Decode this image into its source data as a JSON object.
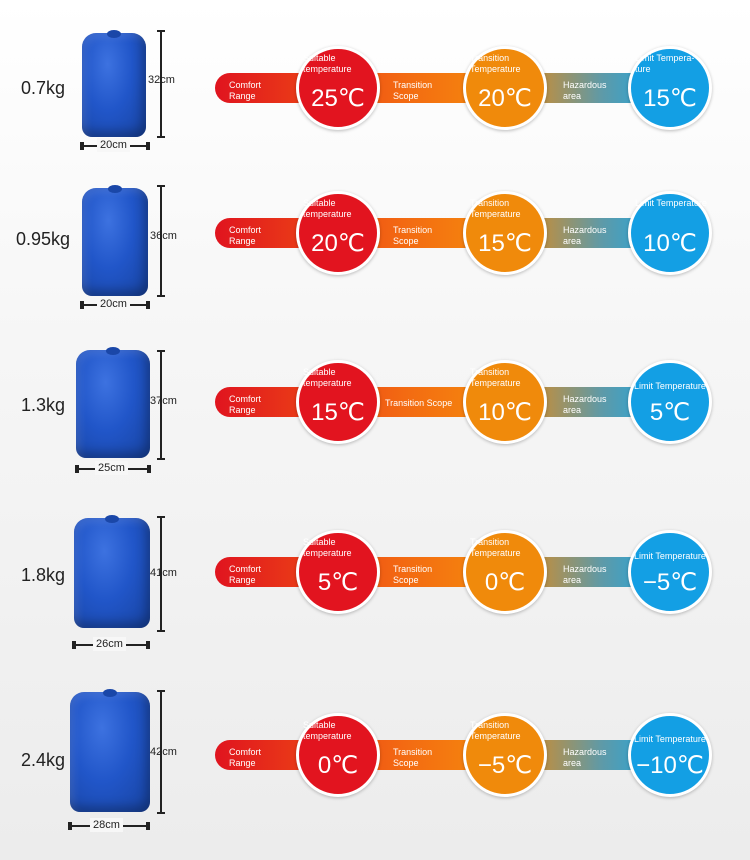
{
  "rows": [
    {
      "weight": "0.7kg",
      "height": "32cm",
      "width": "20cm",
      "comfort": "Comfort Range",
      "suitable_title": "Suitable temperature",
      "suitable_temp": "25℃",
      "transition_label": "Transition Scope",
      "transition_title": "Transition Temperature",
      "transition_temp": "20℃",
      "hazard_label": "Hazardous area",
      "limit_title": "Limit Tempera- ture",
      "limit_temp": "15℃"
    },
    {
      "weight": "0.95kg",
      "height": "36cm",
      "width": "20cm",
      "comfort": "Comfort Range",
      "suitable_title": "Suitable temperature",
      "suitable_temp": "20℃",
      "transition_label": "Transition Scope",
      "transition_title": "Transition Temperature",
      "transition_temp": "15℃",
      "hazard_label": "Hazardous area",
      "limit_title": "Limit Temperature",
      "limit_temp": "10℃"
    },
    {
      "weight": "1.3kg",
      "height": "37cm",
      "width": "25cm",
      "comfort": "Comfort Range",
      "suitable_title": "Suitable temperature",
      "suitable_temp": "15℃",
      "transition_label": "Transition Scope",
      "transition_title": "Transition Temperature",
      "transition_temp": "10℃",
      "hazard_label": "Hazardous area",
      "limit_title": "Limit Temperature",
      "limit_temp": "5℃"
    },
    {
      "weight": "1.8kg",
      "height": "41cm",
      "width": "26cm",
      "comfort": "Comfort Range",
      "suitable_title": "Suitable temperature",
      "suitable_temp": "5℃",
      "transition_label": "Transition Scope",
      "transition_title": "Transition Temperature",
      "transition_temp": "0℃",
      "hazard_label": "Hazardous area",
      "limit_title": "Limit Temperature",
      "limit_temp": "−5℃"
    },
    {
      "weight": "2.4kg",
      "height": "42cm",
      "width": "28cm",
      "comfort": "Comfort Range",
      "suitable_title": "Suitable temperature",
      "suitable_temp": "0℃",
      "transition_label": "Transition Scope",
      "transition_title": "Transition Temperature",
      "transition_temp": "−5℃",
      "hazard_label": "Hazardous area",
      "limit_title": "Limit Temperature",
      "limit_temp": "−10℃"
    }
  ],
  "colors": {
    "comfort_red": "#e2141f",
    "transition_orange": "#f08a0b",
    "limit_blue": "#139fe4",
    "bag_blue": "#2156c9"
  },
  "icons": [
    "sleeping-bag-icon"
  ]
}
